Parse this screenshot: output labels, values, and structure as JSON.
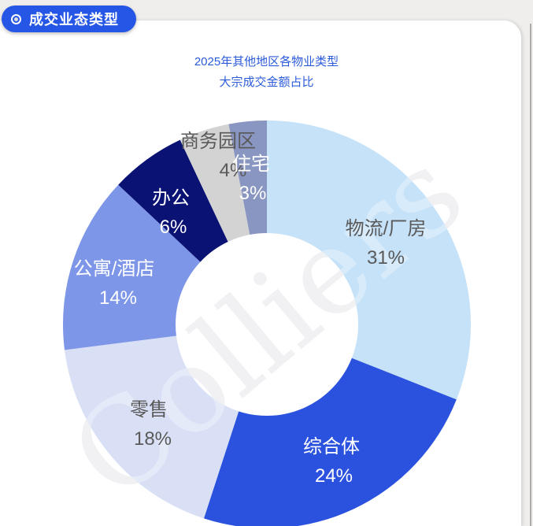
{
  "header": {
    "badge_label": "成交业态类型"
  },
  "chart_title": {
    "line1": "2025年其他地区各物业类型",
    "line2": "大宗成交金额占比"
  },
  "watermark": "Colliers",
  "colors": {
    "badge_bg": "#2656E6",
    "title_text": "#2B5BD9",
    "card_bg": "#FFFFFF",
    "page_bg": "#EFEEEC",
    "label_dark": "#595959",
    "label_light": "#FFFFFF",
    "watermark_gray": "#EBEBEE"
  },
  "chart_data": {
    "type": "pie",
    "subtype": "donut",
    "title": "2025年其他地区各物业类型 大宗成交金额占比",
    "unit": "%",
    "start_angle_deg": 0,
    "direction": "clockwise",
    "legend": "none",
    "labels_on_chart": true,
    "segments": [
      {
        "label": "物流/厂房",
        "value": 31,
        "display": "31%",
        "color": "#C6E2F8",
        "text_color": "#595959"
      },
      {
        "label": "综合体",
        "value": 24,
        "display": "24%",
        "color": "#2A52DE",
        "text_color": "#FFFFFF"
      },
      {
        "label": "零售",
        "value": 18,
        "display": "18%",
        "color": "#D9E0F6",
        "text_color": "#595959"
      },
      {
        "label": "公寓/酒店",
        "value": 14,
        "display": "14%",
        "color": "#7E96E8",
        "text_color": "#FFFFFF"
      },
      {
        "label": "办公",
        "value": 6,
        "display": "6%",
        "color": "#0A1273",
        "text_color": "#FFFFFF"
      },
      {
        "label": "商务园区",
        "value": 4,
        "display": "4%",
        "color": "#D3D3D3",
        "text_color": "#595959"
      },
      {
        "label": "住宅",
        "value": 3,
        "display": "3%",
        "color": "#8A96C2",
        "text_color": "#FFFFFF"
      }
    ]
  }
}
